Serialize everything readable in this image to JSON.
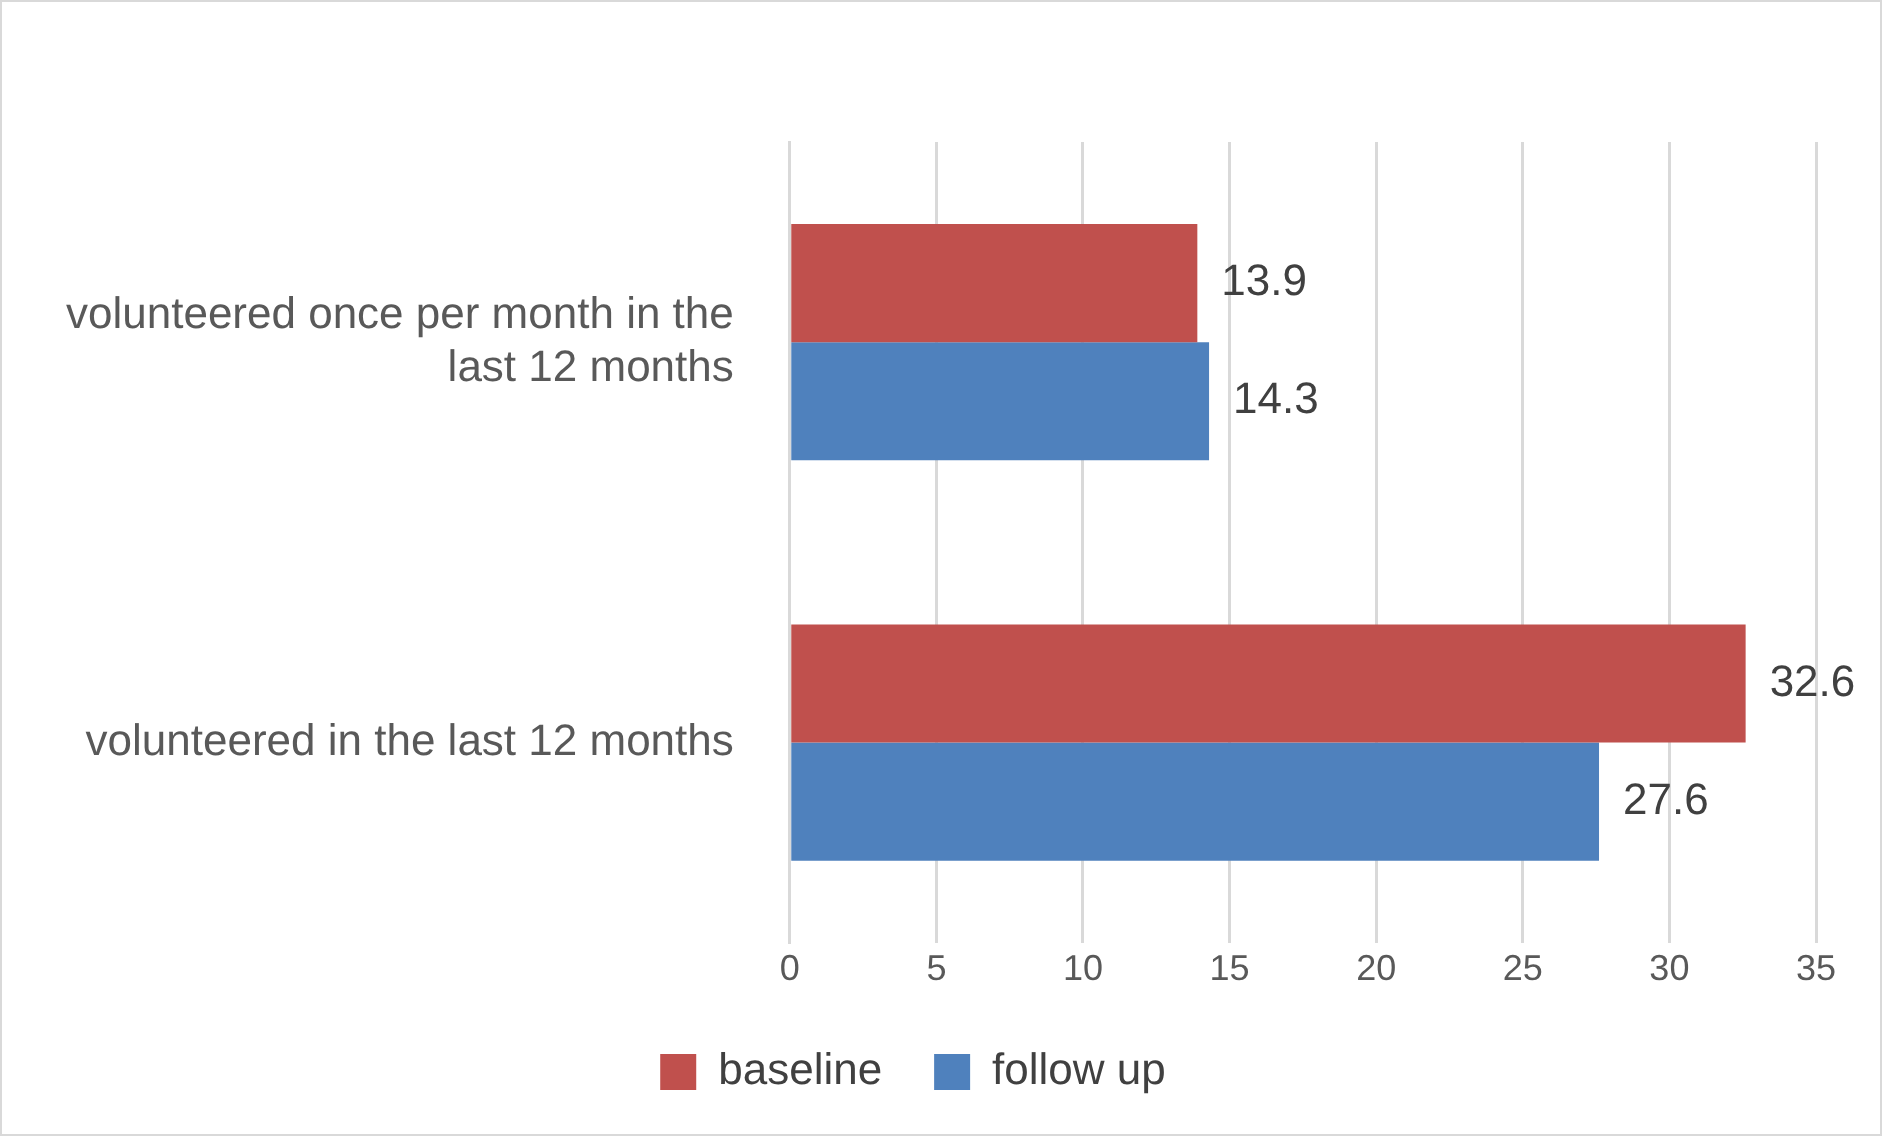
{
  "chart_data": {
    "type": "bar",
    "orientation": "horizontal",
    "categories": [
      "volunteered once per month in the last 12 months",
      "volunteered in the last 12 months"
    ],
    "series": [
      {
        "name": "baseline",
        "color": "#c0504d",
        "values": [
          13.9,
          32.6
        ]
      },
      {
        "name": "follow up",
        "color": "#4f81bd",
        "values": [
          14.3,
          27.6
        ]
      }
    ],
    "xlim": [
      0,
      35
    ],
    "xticks": [
      0,
      5,
      10,
      15,
      20,
      25,
      30,
      35
    ],
    "grid": "x",
    "legend": "bottom",
    "data_labels": true
  }
}
